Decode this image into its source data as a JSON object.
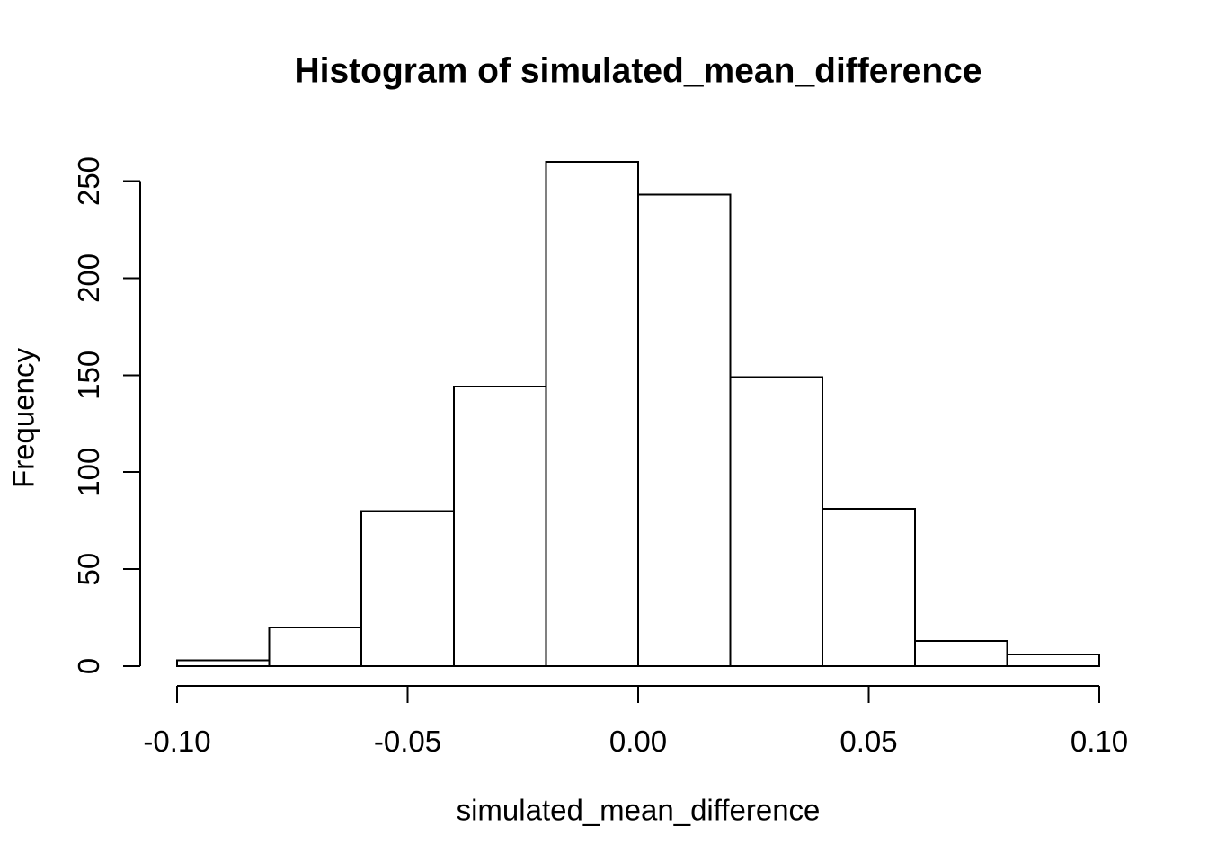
{
  "figure": {
    "title": "Histogram of simulated_mean_difference",
    "xlabel": "simulated_mean_difference",
    "ylabel": "Frequency"
  },
  "chart_data": {
    "type": "bar",
    "subtype": "histogram",
    "title": "Histogram of simulated_mean_difference",
    "xlabel": "simulated_mean_difference",
    "ylabel": "Frequency",
    "bin_start": -0.1,
    "bin_width": 0.02,
    "bin_edges": [
      -0.1,
      -0.08,
      -0.06,
      -0.04,
      -0.02,
      0.0,
      0.02,
      0.04,
      0.06,
      0.08,
      0.1
    ],
    "values": [
      3,
      20,
      80,
      144,
      260,
      243,
      149,
      81,
      13,
      6
    ],
    "xlim": [
      -0.1,
      0.1
    ],
    "ylim": [
      0,
      260
    ],
    "x_ticks": [
      {
        "v": -0.1,
        "label": "-0.10"
      },
      {
        "v": -0.05,
        "label": "-0.05"
      },
      {
        "v": 0.0,
        "label": "0.00"
      },
      {
        "v": 0.05,
        "label": "0.05"
      },
      {
        "v": 0.1,
        "label": "0.10"
      }
    ],
    "y_ticks": [
      {
        "v": 0,
        "label": "0"
      },
      {
        "v": 50,
        "label": "50"
      },
      {
        "v": 100,
        "label": "100"
      },
      {
        "v": 150,
        "label": "150"
      },
      {
        "v": 200,
        "label": "200"
      },
      {
        "v": 250,
        "label": "250"
      }
    ],
    "style": {
      "bar_fill": "#ffffff",
      "bar_stroke": "#000000",
      "axis_color": "#000000",
      "text_color": "#000000",
      "background": "#ffffff",
      "grid": false,
      "legend": null
    }
  }
}
